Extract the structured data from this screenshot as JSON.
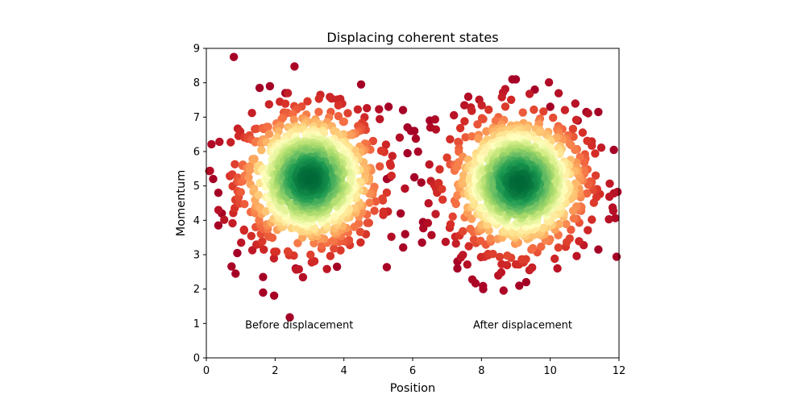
{
  "chart_data": {
    "type": "scatter",
    "title": "Displacing coherent states",
    "xlabel": "Position",
    "ylabel": "Momentum",
    "xlim": [
      0,
      12
    ],
    "ylim": [
      0,
      9
    ],
    "xticks": [
      "0",
      "2",
      "4",
      "6",
      "8",
      "10",
      "12"
    ],
    "yticks": [
      "0",
      "1",
      "2",
      "3",
      "4",
      "5",
      "6",
      "7",
      "8",
      "9"
    ],
    "grid": false,
    "colormap": "RdYlGn (density: low red → high green)",
    "colors": {
      "low": "#a50026",
      "mid": "#ffffbf",
      "high": "#006837"
    },
    "annotations": [
      {
        "text": "Before displacement",
        "x": 2.7,
        "y": 0.85
      },
      {
        "text": "After displacement",
        "x": 9.2,
        "y": 0.85
      }
    ],
    "series": [
      {
        "center": [
          3.0,
          5.2
        ],
        "std": [
          1.0,
          1.0
        ],
        "count": 1000
      },
      {
        "center": [
          9.1,
          5.1
        ],
        "std": [
          1.0,
          1.0
        ],
        "count": 1000
      }
    ],
    "outliers": [
      [
        0.8,
        8.75
      ],
      [
        0.2,
        5.2
      ],
      [
        0.35,
        4.8
      ],
      [
        0.35,
        3.85
      ],
      [
        0.45,
        4.2
      ],
      [
        0.85,
        2.45
      ],
      [
        0.9,
        3.05
      ],
      [
        1.55,
        7.85
      ],
      [
        1.85,
        7.9
      ],
      [
        2.3,
        7.7
      ],
      [
        1.65,
        2.35
      ],
      [
        1.65,
        1.9
      ],
      [
        2.6,
        2.6
      ],
      [
        3.8,
        2.65
      ],
      [
        4.5,
        7.95
      ],
      [
        5.3,
        7.3
      ],
      [
        5.25,
        5.2
      ],
      [
        5.65,
        4.2
      ],
      [
        5.85,
        6.7
      ],
      [
        5.95,
        6.6
      ],
      [
        6.05,
        6.6
      ],
      [
        6.25,
        5.1
      ],
      [
        5.85,
        5.95
      ],
      [
        6.5,
        6.9
      ],
      [
        6.3,
        3.95
      ],
      [
        6.05,
        5.25
      ],
      [
        8.05,
        2.0
      ],
      [
        9.1,
        2.1
      ],
      [
        9.3,
        2.2
      ],
      [
        9.55,
        7.8
      ],
      [
        9.0,
        8.1
      ],
      [
        8.9,
        8.1
      ],
      [
        10.0,
        7.3
      ],
      [
        11.4,
        3.15
      ],
      [
        11.85,
        6.05
      ],
      [
        11.05,
        7.15
      ],
      [
        11.4,
        7.15
      ],
      [
        10.8,
        6.9
      ],
      [
        7.3,
        2.6
      ],
      [
        7.3,
        2.8
      ]
    ]
  }
}
